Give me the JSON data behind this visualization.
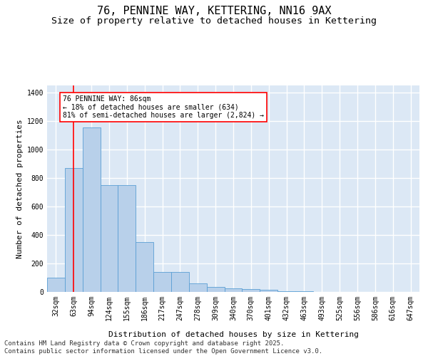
{
  "title1": "76, PENNINE WAY, KETTERING, NN16 9AX",
  "title2": "Size of property relative to detached houses in Kettering",
  "xlabel": "Distribution of detached houses by size in Kettering",
  "ylabel": "Number of detached properties",
  "categories": [
    "32sqm",
    "63sqm",
    "94sqm",
    "124sqm",
    "155sqm",
    "186sqm",
    "217sqm",
    "247sqm",
    "278sqm",
    "309sqm",
    "340sqm",
    "370sqm",
    "401sqm",
    "432sqm",
    "463sqm",
    "493sqm",
    "525sqm",
    "556sqm",
    "586sqm",
    "616sqm",
    "647sqm"
  ],
  "values": [
    100,
    870,
    1155,
    750,
    750,
    350,
    140,
    140,
    60,
    35,
    25,
    20,
    15,
    5,
    3,
    2,
    1,
    0,
    0,
    0,
    0
  ],
  "bar_color": "#b8d0ea",
  "bar_edgecolor": "#5a9fd4",
  "background_color": "#dce8f5",
  "grid_color": "#ffffff",
  "red_line_x": 1.0,
  "red_line_label": "76 PENNINE WAY: 86sqm",
  "annotation_line2": "← 18% of detached houses are smaller (634)",
  "annotation_line3": "81% of semi-detached houses are larger (2,824) →",
  "ylim": [
    0,
    1450
  ],
  "yticks": [
    0,
    200,
    400,
    600,
    800,
    1000,
    1200,
    1400
  ],
  "footer": "Contains HM Land Registry data © Crown copyright and database right 2025.\nContains public sector information licensed under the Open Government Licence v3.0.",
  "title_fontsize": 11,
  "subtitle_fontsize": 9.5,
  "axis_label_fontsize": 8,
  "tick_fontsize": 7,
  "footer_fontsize": 6.5
}
